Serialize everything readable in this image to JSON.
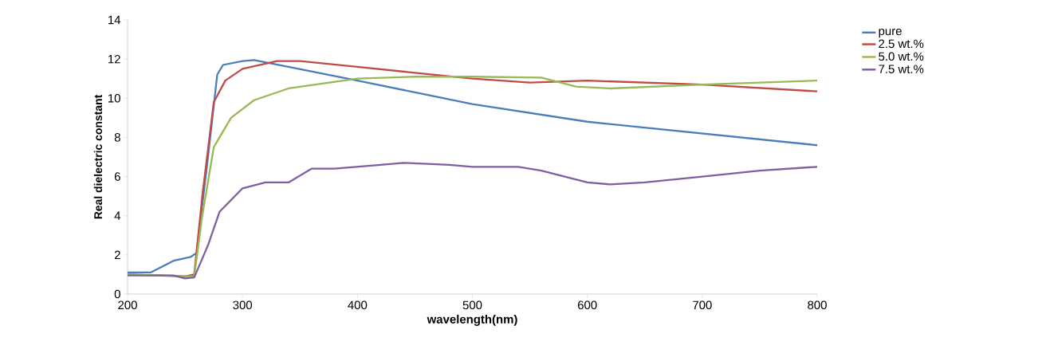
{
  "chart_data": {
    "type": "line",
    "xlabel": "wavelength(nm)",
    "ylabel": "Real dielectric constant",
    "xlim": [
      200,
      800
    ],
    "ylim": [
      0,
      14
    ],
    "xticks": [
      200,
      300,
      400,
      500,
      600,
      700,
      800
    ],
    "yticks": [
      0,
      2,
      4,
      6,
      8,
      10,
      12,
      14
    ],
    "grid": false,
    "legend": "right",
    "marker": "none",
    "line_style": "solid",
    "series": [
      {
        "name": "pure",
        "color": "#4a7ebb",
        "x": [
          200,
          220,
          240,
          255,
          260,
          270,
          278,
          283,
          300,
          310,
          340,
          400,
          450,
          500,
          600,
          700,
          800
        ],
        "values": [
          1.1,
          1.1,
          1.7,
          1.9,
          2.1,
          7,
          11.2,
          11.7,
          11.9,
          11.95,
          11.6,
          10.9,
          10.3,
          9.7,
          8.8,
          8.2,
          7.6
        ]
      },
      {
        "name": "2.5 wt.%",
        "color": "#be4b48",
        "x": [
          200,
          250,
          258,
          265,
          275,
          285,
          300,
          330,
          350,
          400,
          450,
          500,
          550,
          600,
          700,
          800
        ],
        "values": [
          1.0,
          0.9,
          1.0,
          5,
          9.8,
          10.9,
          11.5,
          11.9,
          11.9,
          11.6,
          11.3,
          11.0,
          10.8,
          10.9,
          10.7,
          10.35
        ]
      },
      {
        "name": "5.0 wt.%",
        "color": "#98b954",
        "x": [
          200,
          258,
          265,
          275,
          290,
          310,
          340,
          400,
          450,
          500,
          560,
          590,
          620,
          700,
          800
        ],
        "values": [
          1.0,
          0.9,
          4,
          7.5,
          9.0,
          9.9,
          10.5,
          11.0,
          11.1,
          11.1,
          11.05,
          10.6,
          10.5,
          10.7,
          10.9
        ]
      },
      {
        "name": "7.5 wt.%",
        "color": "#7d60a0",
        "x": [
          200,
          240,
          250,
          258,
          270,
          280,
          300,
          320,
          340,
          360,
          380,
          420,
          440,
          480,
          500,
          540,
          560,
          600,
          620,
          650,
          700,
          750,
          800
        ],
        "values": [
          0.95,
          0.95,
          0.8,
          0.85,
          2.5,
          4.2,
          5.4,
          5.7,
          5.7,
          6.4,
          6.4,
          6.6,
          6.7,
          6.6,
          6.5,
          6.5,
          6.3,
          5.7,
          5.6,
          5.7,
          6.0,
          6.3,
          6.5
        ]
      }
    ]
  }
}
